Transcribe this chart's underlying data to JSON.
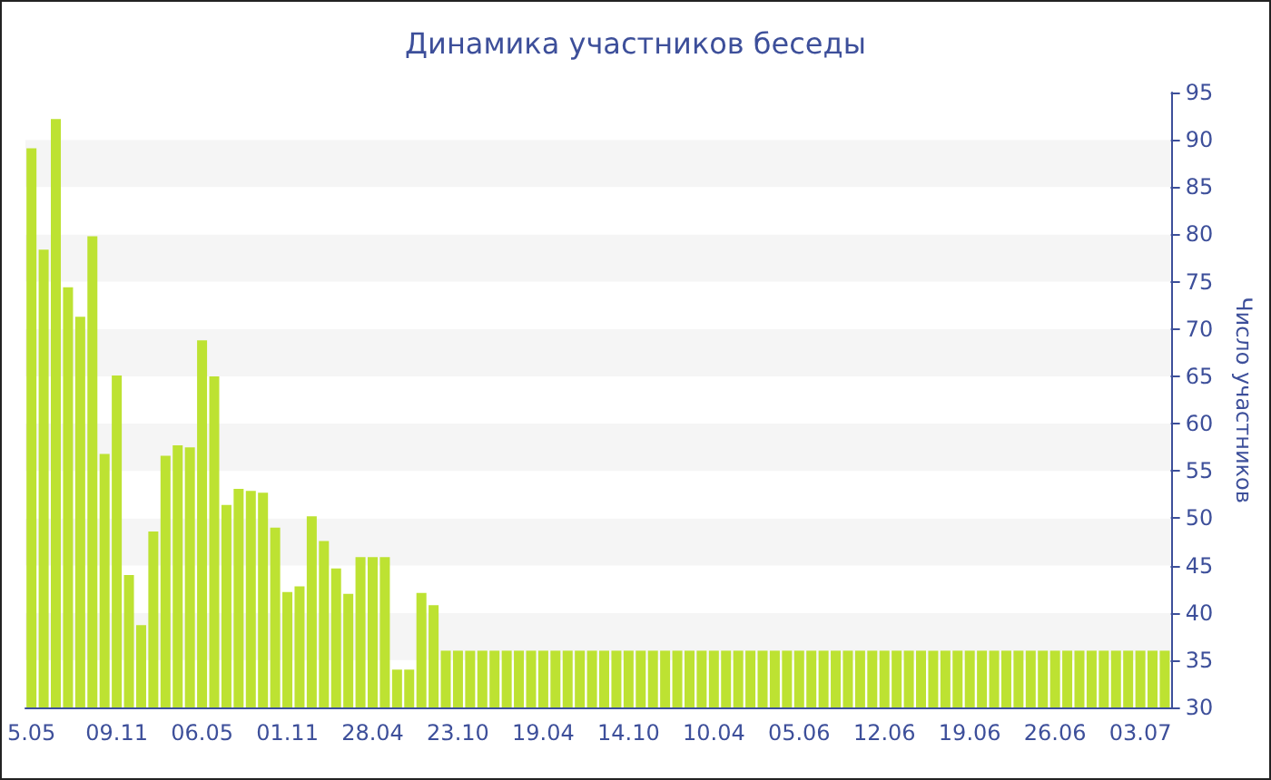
{
  "chart_data": {
    "type": "bar",
    "title": "Динамика участников беседы",
    "ylabel": "Число участников",
    "categories": [
      "5.05",
      null,
      null,
      null,
      null,
      null,
      null,
      "09.11",
      null,
      null,
      null,
      null,
      null,
      null,
      "06.05",
      null,
      null,
      null,
      null,
      null,
      null,
      "01.11",
      null,
      null,
      null,
      null,
      null,
      null,
      "28.04",
      null,
      null,
      null,
      null,
      null,
      null,
      "23.10",
      null,
      null,
      null,
      null,
      null,
      null,
      "19.04",
      null,
      null,
      null,
      null,
      null,
      null,
      "14.10",
      null,
      null,
      null,
      null,
      null,
      null,
      "10.04",
      null,
      null,
      null,
      null,
      null,
      null,
      "05.06",
      null,
      null,
      null,
      null,
      null,
      null,
      "12.06",
      null,
      null,
      null,
      null,
      null,
      null,
      "19.06",
      null,
      null,
      null,
      null,
      null,
      null,
      "26.06",
      null,
      null,
      null,
      null,
      null,
      null,
      "03.07",
      null,
      null
    ],
    "values": [
      89.1,
      78.4,
      92.2,
      74.4,
      71.3,
      79.8,
      56.8,
      65.1,
      44.0,
      38.7,
      48.6,
      56.6,
      57.7,
      57.5,
      68.8,
      65.0,
      51.4,
      53.1,
      52.9,
      52.7,
      49.0,
      42.2,
      42.8,
      50.2,
      47.6,
      44.7,
      42.0,
      45.9,
      45.9,
      45.9,
      34.0,
      34.0,
      42.1,
      40.8,
      36,
      36,
      36,
      36,
      36,
      36,
      36,
      36,
      36,
      36,
      36,
      36,
      36,
      36,
      36,
      36,
      36,
      36,
      36,
      36,
      36,
      36,
      36,
      36,
      36,
      36,
      36,
      36,
      36,
      36,
      36,
      36,
      36,
      36,
      36,
      36,
      36,
      36,
      36,
      36,
      36,
      36,
      36,
      36,
      36,
      36,
      36,
      36,
      36,
      36,
      36,
      36,
      36,
      36,
      36,
      36,
      36,
      36,
      36,
      36
    ],
    "color": "#bde232",
    "ylim": [
      30,
      95
    ],
    "yticks": [
      30,
      35,
      40,
      45,
      50,
      55,
      60,
      65,
      70,
      75,
      80,
      85,
      90,
      95
    ]
  }
}
